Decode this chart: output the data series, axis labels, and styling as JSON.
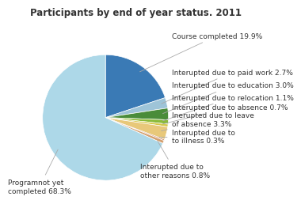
{
  "title": "Participants by end of year status. 2011",
  "slices": [
    {
      "label": "Course completed 19.9%",
      "value": 19.9,
      "color": "#3a7ab5"
    },
    {
      "label": "Interupted due to paid work 2.7%",
      "value": 2.7,
      "color": "#9ec4d8"
    },
    {
      "label": "Interupted due to education 3.0%",
      "value": 3.0,
      "color": "#4a8c3a"
    },
    {
      "label": "Interupted due to relocation 1.1%",
      "value": 1.1,
      "color": "#8aba3a"
    },
    {
      "label": "Interupted due to absence 0.7%",
      "value": 0.7,
      "color": "#d4c84a"
    },
    {
      "label": "Inerupted due to leave\nof absence 3.3%",
      "value": 3.3,
      "color": "#e8c87a"
    },
    {
      "label": "Interupted due to\nto illness 0.3%",
      "value": 0.3,
      "color": "#bb6644"
    },
    {
      "label": "Interupted due to\nother reasons 0.8%",
      "value": 0.8,
      "color": "#d4a070"
    },
    {
      "label": "Programnot yet\ncompleted 68.3%",
      "value": 68.3,
      "color": "#add8e8"
    }
  ],
  "background_color": "#ffffff",
  "title_fontsize": 8.5,
  "label_fontsize": 6.5
}
